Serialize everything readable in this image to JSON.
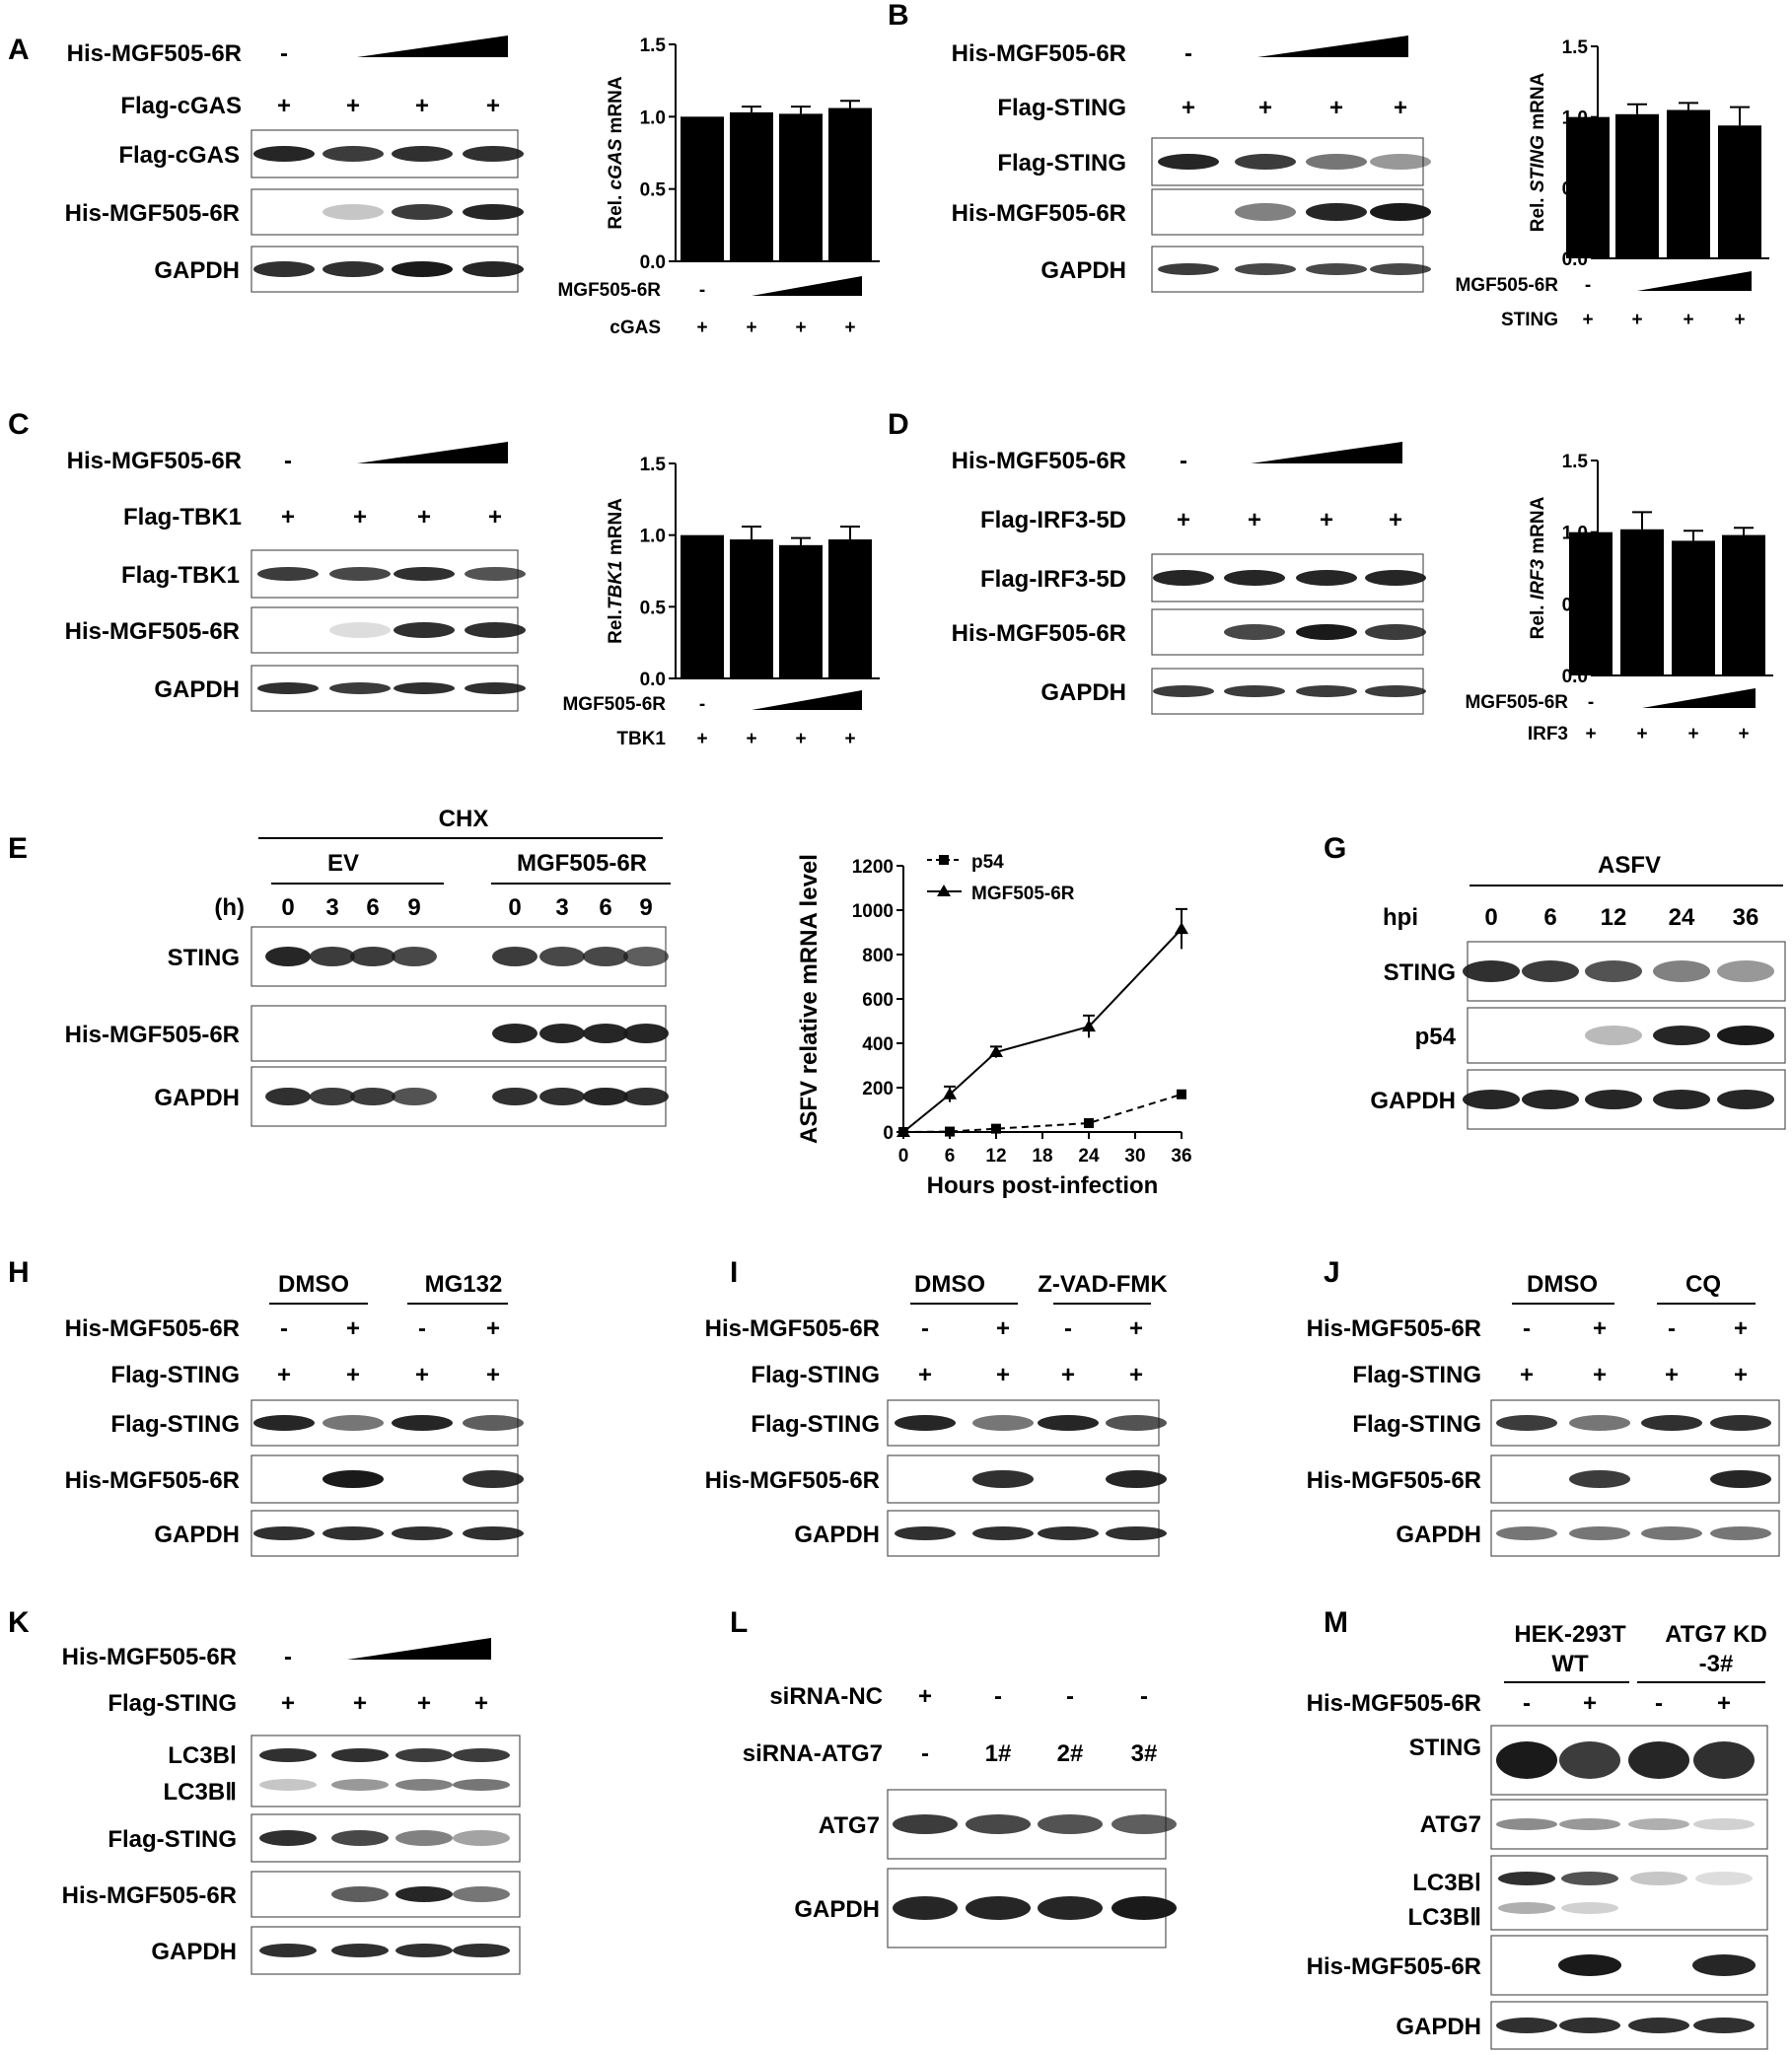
{
  "panels": {
    "A": {
      "letter": "A",
      "his": "His-MGF505-6R",
      "flag": "Flag-cGAS",
      "rows": [
        "Flag-cGAS",
        "His-MGF505-6R",
        "GAPDH"
      ],
      "signs": [
        "-",
        "+",
        "+",
        "+",
        "+"
      ]
    },
    "B": {
      "letter": "B",
      "his": "His-MGF505-6R",
      "flag": "Flag-STING",
      "rows": [
        "Flag-STING",
        "His-MGF505-6R",
        "GAPDH"
      ]
    },
    "C": {
      "letter": "C",
      "his": "His-MGF505-6R",
      "flag": "Flag-TBK1",
      "rows": [
        "Flag-TBK1",
        "His-MGF505-6R",
        "GAPDH"
      ]
    },
    "D": {
      "letter": "D",
      "his": "His-MGF505-6R",
      "flag": "Flag-IRF3-5D",
      "rows": [
        "Flag-IRF3-5D",
        "His-MGF505-6R",
        "GAPDH"
      ]
    },
    "E": {
      "letter": "E",
      "treat": "CHX",
      "ev": "EV",
      "mgf": "MGF505-6R",
      "h": "(h)",
      "times": [
        "0",
        "3",
        "6",
        "9"
      ],
      "rows": [
        "STING",
        "His-MGF505-6R",
        "GAPDH"
      ]
    },
    "G": {
      "letter": "G",
      "asfv": "ASFV",
      "hpi": "hpi",
      "times": [
        "0",
        "6",
        "12",
        "24",
        "36"
      ],
      "rows": [
        "STING",
        "p54",
        "GAPDH"
      ]
    },
    "H": {
      "letter": "H",
      "g1": "DMSO",
      "g2": "MG132",
      "his": "His-MGF505-6R",
      "flag": "Flag-STING",
      "rows": [
        "Flag-STING",
        "His-MGF505-6R",
        "GAPDH"
      ]
    },
    "I": {
      "letter": "I",
      "g1": "DMSO",
      "g2": "Z-VAD-FMK",
      "his": "His-MGF505-6R",
      "flag": "Flag-STING",
      "rows": [
        "Flag-STING",
        "His-MGF505-6R",
        "GAPDH"
      ]
    },
    "J": {
      "letter": "J",
      "g1": "DMSO",
      "g2": "CQ",
      "his": "His-MGF505-6R",
      "flag": "Flag-STING",
      "rows": [
        "Flag-STING",
        "His-MGF505-6R",
        "GAPDH"
      ]
    },
    "K": {
      "letter": "K",
      "his": "His-MGF505-6R",
      "flag": "Flag-STING",
      "rows": [
        "LC3BⅠ",
        "LC3BⅡ",
        "Flag-STING",
        "His-MGF505-6R",
        "GAPDH"
      ]
    },
    "L": {
      "letter": "L",
      "nc": "siRNA-NC",
      "atg": "siRNA-ATG7",
      "lanes": [
        "1#",
        "2#",
        "3#"
      ],
      "rows": [
        "ATG7",
        "GAPDH"
      ]
    },
    "M": {
      "letter": "M",
      "g1a": "HEK-293T",
      "g1b": "WT",
      "g2a": "ATG7 KD",
      "g2b": "-3#",
      "his": "His-MGF505-6R",
      "rows": [
        "STING",
        "ATG7",
        "LC3BⅠ",
        "LC3BⅡ",
        "His-MGF505-6R",
        "GAPDH"
      ]
    }
  },
  "signs": {
    "minus": "-",
    "plus": "+"
  },
  "chart_data": [
    {
      "id": "A",
      "type": "bar",
      "categories": [
        "1",
        "2",
        "3",
        "4"
      ],
      "values": [
        1.0,
        1.03,
        1.02,
        1.06
      ],
      "errors": [
        0,
        0.04,
        0.05,
        0.05
      ],
      "ylabel_pre": "Rel. ",
      "ylabel_gene": "cGAS",
      "ylabel_post": " mRNA",
      "yticks": [
        "0.0",
        "0.5",
        "1.0",
        "1.5"
      ],
      "ylim": [
        0,
        1.5
      ],
      "row1": "MGF505-6R",
      "row2": "cGAS"
    },
    {
      "id": "B",
      "type": "bar",
      "categories": [
        "1",
        "2",
        "3",
        "4"
      ],
      "values": [
        1.0,
        1.02,
        1.05,
        0.94
      ],
      "errors": [
        0,
        0.07,
        0.05,
        0.13
      ],
      "ylabel_pre": "Rel. ",
      "ylabel_gene": "STING",
      "ylabel_post": " mRNA",
      "yticks": [
        "0.0",
        "0.5",
        "1.0",
        "1.5"
      ],
      "ylim": [
        0,
        1.5
      ],
      "row1": "MGF505-6R",
      "row2": "STING"
    },
    {
      "id": "C",
      "type": "bar",
      "categories": [
        "1",
        "2",
        "3",
        "4"
      ],
      "values": [
        1.0,
        0.97,
        0.93,
        0.97
      ],
      "errors": [
        0,
        0.09,
        0.05,
        0.09
      ],
      "ylabel_pre": "Rel.",
      "ylabel_gene": "TBK1",
      "ylabel_post": " mRNA",
      "yticks": [
        "0.0",
        "0.5",
        "1.0",
        "1.5"
      ],
      "ylim": [
        0,
        1.5
      ],
      "row1": "MGF505-6R",
      "row2": "TBK1"
    },
    {
      "id": "D",
      "type": "bar",
      "categories": [
        "1",
        "2",
        "3",
        "4"
      ],
      "values": [
        1.0,
        1.02,
        0.94,
        0.98
      ],
      "errors": [
        0,
        0.12,
        0.07,
        0.05
      ],
      "ylabel_pre": "Rel. ",
      "ylabel_gene": "IRF3",
      "ylabel_post": " mRNA",
      "yticks": [
        "0.0",
        "0.5",
        "1.0",
        "1.5"
      ],
      "ylim": [
        0,
        1.5
      ],
      "row1": "MGF505-6R",
      "row2": "IRF3"
    },
    {
      "id": "F",
      "type": "line",
      "x": [
        0,
        6,
        12,
        24,
        36
      ],
      "xticks": [
        "0",
        "6",
        "12",
        "18",
        "24",
        "30",
        "36"
      ],
      "yticks": [
        "0",
        "200",
        "400",
        "600",
        "800",
        "1000",
        "1200"
      ],
      "xlabel": "Hours post-infection",
      "ylabel": "ASFV relative mRNA level",
      "xlim": [
        0,
        36
      ],
      "ylim": [
        0,
        1200
      ],
      "series": [
        {
          "name": "p54",
          "values": [
            0,
            2,
            15,
            40,
            170
          ],
          "errors": [
            0,
            0,
            0,
            0,
            0
          ]
        },
        {
          "name": "MGF505-6R",
          "values": [
            0,
            170,
            360,
            475,
            915
          ],
          "errors": [
            0,
            35,
            25,
            50,
            90
          ]
        }
      ]
    }
  ]
}
